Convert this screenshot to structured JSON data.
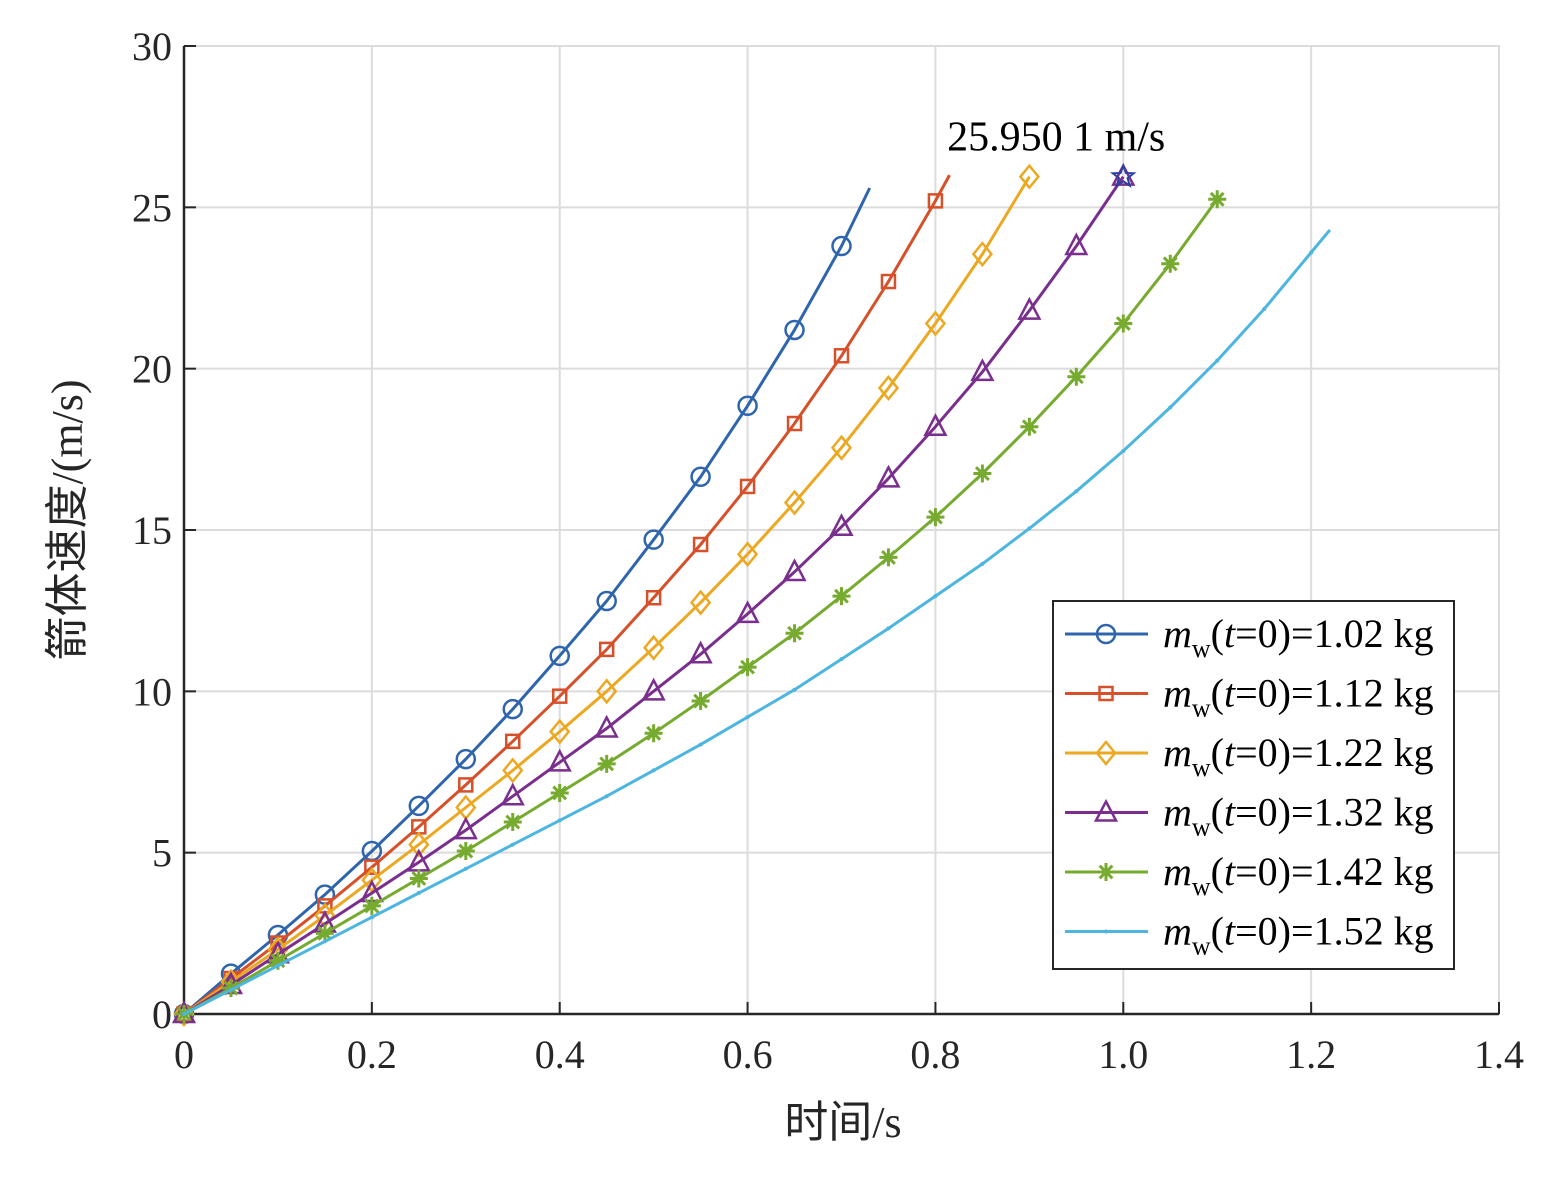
{
  "chart_data": {
    "type": "line",
    "title": "",
    "xlabel": "时间/s",
    "ylabel": "箭体速度/(m/s)",
    "xlim": [
      0,
      1.4
    ],
    "ylim": [
      0,
      30
    ],
    "xticks": [
      0,
      0.2,
      0.4,
      0.6,
      0.8,
      1.0,
      1.2,
      1.4
    ],
    "xtick_labels": [
      "0",
      "0.2",
      "0.4",
      "0.6",
      "0.8",
      "1.0",
      "1.2",
      "1.4"
    ],
    "yticks": [
      0,
      5,
      10,
      15,
      20,
      25,
      30
    ],
    "ytick_labels": [
      "0",
      "5",
      "10",
      "15",
      "20",
      "25",
      "30"
    ],
    "grid": true,
    "legend_position": "lower-right",
    "series": [
      {
        "name": "m_w(t=0)=1.02 kg",
        "legend": {
          "prefix": "m",
          "sub": "w",
          "open": "(",
          "var": "t",
          "rest": "=0)=1.02 kg"
        },
        "color": "#2f65ad",
        "marker": "circle",
        "x": [
          0,
          0.05,
          0.1,
          0.15,
          0.2,
          0.25,
          0.3,
          0.35,
          0.4,
          0.45,
          0.5,
          0.55,
          0.6,
          0.65,
          0.7,
          0.73
        ],
        "y": [
          0,
          1.25,
          2.45,
          3.7,
          5.05,
          6.45,
          7.9,
          9.45,
          11.1,
          12.8,
          14.7,
          16.65,
          18.85,
          21.2,
          23.8,
          25.6
        ]
      },
      {
        "name": "m_w(t=0)=1.12 kg",
        "legend": {
          "prefix": "m",
          "sub": "w",
          "open": "(",
          "var": "t",
          "rest": "=0)=1.12 kg"
        },
        "color": "#d6502a",
        "marker": "square",
        "x": [
          0,
          0.05,
          0.1,
          0.15,
          0.2,
          0.25,
          0.3,
          0.35,
          0.4,
          0.45,
          0.5,
          0.55,
          0.6,
          0.65,
          0.7,
          0.75,
          0.8,
          0.815
        ],
        "y": [
          0,
          1.1,
          2.2,
          3.35,
          4.55,
          5.8,
          7.1,
          8.45,
          9.85,
          11.3,
          12.9,
          14.55,
          16.35,
          18.3,
          20.4,
          22.7,
          25.2,
          26.0
        ]
      },
      {
        "name": "m_w(t=0)=1.22 kg",
        "legend": {
          "prefix": "m",
          "sub": "w",
          "open": "(",
          "var": "t",
          "rest": "=0)=1.22 kg"
        },
        "color": "#eda822",
        "marker": "diamond",
        "x": [
          0,
          0.05,
          0.1,
          0.15,
          0.2,
          0.25,
          0.3,
          0.35,
          0.4,
          0.45,
          0.5,
          0.55,
          0.6,
          0.65,
          0.7,
          0.75,
          0.8,
          0.85,
          0.9
        ],
        "y": [
          0,
          1.0,
          2.0,
          3.05,
          4.15,
          5.25,
          6.4,
          7.55,
          8.75,
          10.0,
          11.35,
          12.75,
          14.25,
          15.85,
          17.55,
          19.4,
          21.4,
          23.55,
          25.95
        ]
      },
      {
        "name": "m_w(t=0)=1.32 kg",
        "legend": {
          "prefix": "m",
          "sub": "w",
          "open": "(",
          "var": "t",
          "rest": "=0)=1.32 kg"
        },
        "color": "#7a2e8d",
        "marker": "triangle",
        "x": [
          0,
          0.05,
          0.1,
          0.15,
          0.2,
          0.25,
          0.3,
          0.35,
          0.4,
          0.45,
          0.5,
          0.55,
          0.6,
          0.65,
          0.7,
          0.75,
          0.8,
          0.85,
          0.9,
          0.95,
          1.0
        ],
        "y": [
          0,
          0.9,
          1.85,
          2.8,
          3.75,
          4.7,
          5.7,
          6.75,
          7.8,
          8.85,
          10.0,
          11.15,
          12.4,
          13.7,
          15.1,
          16.6,
          18.2,
          19.9,
          21.8,
          23.8,
          25.95
        ]
      },
      {
        "name": "m_w(t=0)=1.42 kg",
        "legend": {
          "prefix": "m",
          "sub": "w",
          "open": "(",
          "var": "t",
          "rest": "=0)=1.42 kg"
        },
        "color": "#76ab2f",
        "marker": "asterisk",
        "x": [
          0,
          0.05,
          0.1,
          0.15,
          0.2,
          0.25,
          0.3,
          0.35,
          0.4,
          0.45,
          0.5,
          0.55,
          0.6,
          0.65,
          0.7,
          0.75,
          0.8,
          0.85,
          0.9,
          0.95,
          1.0,
          1.05,
          1.1
        ],
        "y": [
          0,
          0.8,
          1.65,
          2.5,
          3.35,
          4.2,
          5.05,
          5.95,
          6.85,
          7.75,
          8.7,
          9.7,
          10.75,
          11.8,
          12.95,
          14.15,
          15.4,
          16.75,
          18.2,
          19.75,
          21.4,
          23.25,
          25.25
        ]
      },
      {
        "name": "m_w(t=0)=1.52 kg",
        "legend": {
          "prefix": "m",
          "sub": "w",
          "open": "(",
          "var": "t",
          "rest": "=0)=1.52 kg"
        },
        "color": "#4cb6e0",
        "marker": "point",
        "x": [
          0,
          0.05,
          0.1,
          0.15,
          0.2,
          0.25,
          0.3,
          0.35,
          0.4,
          0.45,
          0.5,
          0.55,
          0.6,
          0.65,
          0.7,
          0.75,
          0.8,
          0.85,
          0.9,
          0.95,
          1.0,
          1.05,
          1.1,
          1.15,
          1.2,
          1.22
        ],
        "y": [
          0,
          0.75,
          1.5,
          2.25,
          3.0,
          3.75,
          4.5,
          5.25,
          6.0,
          6.75,
          7.55,
          8.35,
          9.2,
          10.05,
          11.0,
          11.95,
          12.95,
          13.95,
          15.05,
          16.2,
          17.45,
          18.8,
          20.25,
          21.85,
          23.6,
          24.3
        ]
      }
    ],
    "annotation": {
      "text": "25.950 1 m/s",
      "x": 1.0,
      "y": 25.95,
      "marker": "star",
      "color": "#2f3f9f"
    }
  }
}
